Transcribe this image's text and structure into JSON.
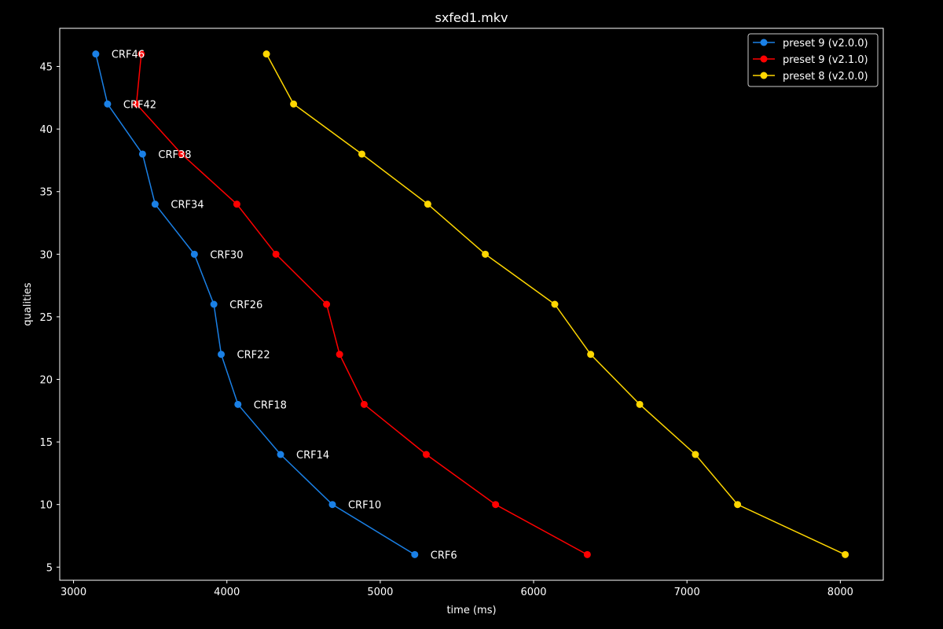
{
  "chart_data": {
    "type": "line",
    "title": "sxfed1.mkv",
    "xlabel": "time (ms)",
    "ylabel": "qualities",
    "xlim": [
      2910,
      8280
    ],
    "ylim": [
      3.95,
      48.05
    ],
    "xticks": [
      3000,
      4000,
      5000,
      6000,
      7000,
      8000
    ],
    "yticks": [
      5,
      10,
      15,
      20,
      25,
      30,
      35,
      40,
      45
    ],
    "grid": false,
    "legend_position": "top-right",
    "qualities": [
      46,
      42,
      38,
      34,
      30,
      26,
      22,
      18,
      14,
      10,
      6
    ],
    "point_labels": [
      "CRF46",
      "CRF42",
      "CRF38",
      "CRF34",
      "CRF30",
      "CRF26",
      "CRF22",
      "CRF18",
      "CRF14",
      "CRF10",
      "CRF6"
    ],
    "series": [
      {
        "name": "preset 9 (v2.0.0)",
        "color": "#1a80e6",
        "x": [
          3145,
          3222,
          3450,
          3532,
          3788,
          3915,
          3963,
          4072,
          4350,
          4688,
          5225
        ],
        "y": [
          46,
          42,
          38,
          34,
          30,
          26,
          22,
          18,
          14,
          10,
          6
        ]
      },
      {
        "name": "preset 9 (v2.1.0)",
        "color": "#ff0000",
        "x": [
          3442,
          3410,
          3705,
          4065,
          4320,
          4650,
          4735,
          4895,
          5300,
          5752,
          6350
        ],
        "y": [
          46,
          42,
          38,
          34,
          30,
          26,
          22,
          18,
          14,
          10,
          6
        ]
      },
      {
        "name": "preset 8 (v2.0.0)",
        "color": "#ffd700",
        "x": [
          4258,
          4435,
          4880,
          5310,
          5685,
          6138,
          6372,
          6692,
          7055,
          7330,
          8032
        ],
        "y": [
          46,
          42,
          38,
          34,
          30,
          26,
          22,
          18,
          14,
          10,
          6
        ]
      }
    ]
  }
}
